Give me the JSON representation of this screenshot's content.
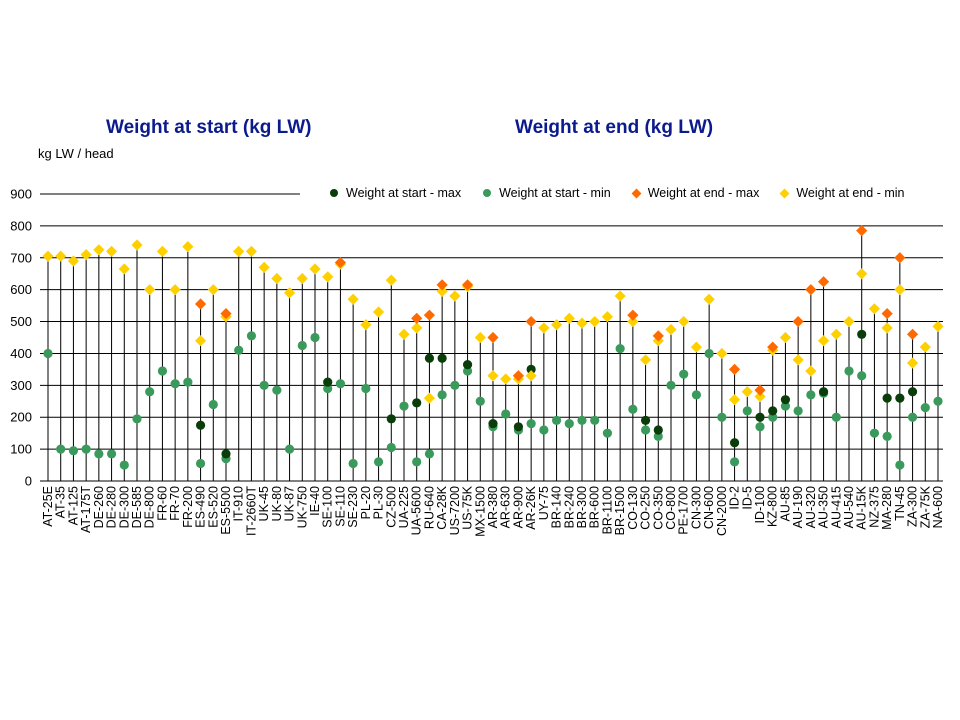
{
  "titles": {
    "left": "Weight at start (kg LW)",
    "right": "Weight at end (kg LW)",
    "unit": "kg LW / head"
  },
  "legend": [
    {
      "label": "Weight at start - max",
      "color": "#0a3d0a",
      "shape": "circle"
    },
    {
      "label": "Weight at start - min",
      "color": "#3a9a5c",
      "shape": "circle"
    },
    {
      "label": "Weight at end - max",
      "color": "#ff6a00",
      "shape": "diamond"
    },
    {
      "label": "Weight at end - min",
      "color": "#ffd000",
      "shape": "diamond"
    }
  ],
  "chart_data": {
    "type": "scatter",
    "ylim": [
      0,
      900
    ],
    "yticks": [
      0,
      100,
      200,
      300,
      400,
      500,
      600,
      700,
      800,
      900
    ],
    "grid": "horizontal",
    "legend_position": "top",
    "series_names": [
      "Weight at start - max",
      "Weight at start - min",
      "Weight at end - max",
      "Weight at end - min"
    ],
    "categories": [
      {
        "label": "AT-25E",
        "smax": null,
        "smin": 400,
        "emax": null,
        "emin": 705
      },
      {
        "label": "AT-35",
        "smax": null,
        "smin": 100,
        "emax": null,
        "emin": 705
      },
      {
        "label": "AT-125",
        "smax": null,
        "smin": 95,
        "emax": null,
        "emin": 690
      },
      {
        "label": "AT-175T",
        "smax": null,
        "smin": 100,
        "emax": null,
        "emin": 710
      },
      {
        "label": "DE-260",
        "smax": null,
        "smin": 85,
        "emax": null,
        "emin": 725
      },
      {
        "label": "DE-280",
        "smax": null,
        "smin": 85,
        "emax": null,
        "emin": 720
      },
      {
        "label": "DE-300",
        "smax": null,
        "smin": 50,
        "emax": null,
        "emin": 665
      },
      {
        "label": "DE-585",
        "smax": null,
        "smin": 195,
        "emax": null,
        "emin": 740
      },
      {
        "label": "DE-800",
        "smax": null,
        "smin": 280,
        "emax": null,
        "emin": 600
      },
      {
        "label": "FR-60",
        "smax": null,
        "smin": 345,
        "emax": null,
        "emin": 720
      },
      {
        "label": "FR-70",
        "smax": null,
        "smin": 305,
        "emax": null,
        "emin": 600
      },
      {
        "label": "FR-200",
        "smax": null,
        "smin": 310,
        "emax": null,
        "emin": 735
      },
      {
        "label": "ES-490",
        "smax": 175,
        "smin": 55,
        "emax": 555,
        "emin": 440
      },
      {
        "label": "ES-520",
        "smax": null,
        "smin": 240,
        "emax": null,
        "emin": 600
      },
      {
        "label": "ES-5500",
        "smax": 85,
        "smin": 70,
        "emax": 525,
        "emin": 515
      },
      {
        "label": "IT-910",
        "smax": null,
        "smin": 410,
        "emax": null,
        "emin": 720
      },
      {
        "label": "IT-2660T",
        "smax": null,
        "smin": 455,
        "emax": null,
        "emin": 720
      },
      {
        "label": "UK-45",
        "smax": null,
        "smin": 300,
        "emax": null,
        "emin": 670
      },
      {
        "label": "UK-80",
        "smax": null,
        "smin": 285,
        "emax": null,
        "emin": 635
      },
      {
        "label": "UK-87",
        "smax": null,
        "smin": 100,
        "emax": null,
        "emin": 590
      },
      {
        "label": "UK-750",
        "smax": null,
        "smin": 425,
        "emax": null,
        "emin": 635
      },
      {
        "label": "IE-40",
        "smax": null,
        "smin": 450,
        "emax": null,
        "emin": 665
      },
      {
        "label": "SE-100",
        "smax": 310,
        "smin": 290,
        "emax": null,
        "emin": 640
      },
      {
        "label": "SE-110",
        "smax": null,
        "smin": 305,
        "emax": 685,
        "emin": 680
      },
      {
        "label": "SE-230",
        "smax": null,
        "smin": 55,
        "emax": null,
        "emin": 570
      },
      {
        "label": "PL-20",
        "smax": null,
        "smin": 290,
        "emax": null,
        "emin": 490
      },
      {
        "label": "PL-30",
        "smax": null,
        "smin": 60,
        "emax": null,
        "emin": 530
      },
      {
        "label": "CZ-500",
        "smax": 195,
        "smin": 105,
        "emax": null,
        "emin": 630
      },
      {
        "label": "UA-225",
        "smax": null,
        "smin": 235,
        "emax": null,
        "emin": 460
      },
      {
        "label": "UA-5600",
        "smax": 245,
        "smin": 60,
        "emax": 510,
        "emin": 480
      },
      {
        "label": "RU-640",
        "smax": 385,
        "smin": 85,
        "emax": 520,
        "emin": 260
      },
      {
        "label": "CA-28K",
        "smax": 385,
        "smin": 270,
        "emax": 615,
        "emin": 595
      },
      {
        "label": "US-7200",
        "smax": null,
        "smin": 300,
        "emax": null,
        "emin": 580
      },
      {
        "label": "US-75K",
        "smax": 365,
        "smin": 345,
        "emax": 615,
        "emin": 610
      },
      {
        "label": "MX-1500",
        "smax": null,
        "smin": 250,
        "emax": null,
        "emin": 450
      },
      {
        "label": "AR-380",
        "smax": 180,
        "smin": 170,
        "emax": 450,
        "emin": 330
      },
      {
        "label": "AR-630",
        "smax": null,
        "smin": 210,
        "emax": null,
        "emin": 320
      },
      {
        "label": "AR-900",
        "smax": 170,
        "smin": 160,
        "emax": 330,
        "emin": 320
      },
      {
        "label": "AR-26K",
        "smax": 350,
        "smin": 180,
        "emax": 500,
        "emin": 330
      },
      {
        "label": "UY-75",
        "smax": null,
        "smin": 160,
        "emax": null,
        "emin": 480
      },
      {
        "label": "BR-140",
        "smax": null,
        "smin": 190,
        "emax": null,
        "emin": 490
      },
      {
        "label": "BR-240",
        "smax": null,
        "smin": 180,
        "emax": null,
        "emin": 510
      },
      {
        "label": "BR-300",
        "smax": null,
        "smin": 190,
        "emax": null,
        "emin": 495
      },
      {
        "label": "BR-600",
        "smax": null,
        "smin": 190,
        "emax": null,
        "emin": 500
      },
      {
        "label": "BR-1100",
        "smax": null,
        "smin": 150,
        "emax": null,
        "emin": 515
      },
      {
        "label": "BR-1500",
        "smax": null,
        "smin": 415,
        "emax": null,
        "emin": 580
      },
      {
        "label": "CO-130",
        "smax": null,
        "smin": 225,
        "emax": 520,
        "emin": 500
      },
      {
        "label": "CO-250",
        "smax": 190,
        "smin": 160,
        "emax": null,
        "emin": 380
      },
      {
        "label": "CO-350",
        "smax": 160,
        "smin": 140,
        "emax": 455,
        "emin": 440
      },
      {
        "label": "CO-800",
        "smax": null,
        "smin": 300,
        "emax": null,
        "emin": 475
      },
      {
        "label": "PE-1700",
        "smax": null,
        "smin": 335,
        "emax": null,
        "emin": 500
      },
      {
        "label": "CN-300",
        "smax": null,
        "smin": 270,
        "emax": null,
        "emin": 420
      },
      {
        "label": "CN-600",
        "smax": null,
        "smin": 400,
        "emax": null,
        "emin": 570
      },
      {
        "label": "CN-2000",
        "smax": null,
        "smin": 200,
        "emax": null,
        "emin": 400
      },
      {
        "label": "ID-2",
        "smax": 120,
        "smin": 60,
        "emax": 350,
        "emin": 255
      },
      {
        "label": "ID-5",
        "smax": null,
        "smin": 220,
        "emax": null,
        "emin": 280
      },
      {
        "label": "ID-100",
        "smax": 200,
        "smin": 170,
        "emax": 285,
        "emin": 265
      },
      {
        "label": "KZ-800",
        "smax": 220,
        "smin": 200,
        "emax": 420,
        "emin": 410
      },
      {
        "label": "AU-85",
        "smax": 255,
        "smin": 235,
        "emax": null,
        "emin": 450
      },
      {
        "label": "AU-190",
        "smax": null,
        "smin": 220,
        "emax": 500,
        "emin": 380
      },
      {
        "label": "AU-320",
        "smax": null,
        "smin": 270,
        "emax": 600,
        "emin": 345
      },
      {
        "label": "AU-350",
        "smax": 280,
        "smin": 275,
        "emax": 625,
        "emin": 440
      },
      {
        "label": "AU-415",
        "smax": null,
        "smin": 200,
        "emax": null,
        "emin": 460
      },
      {
        "label": "AU-540",
        "smax": null,
        "smin": 345,
        "emax": null,
        "emin": 500
      },
      {
        "label": "AU-15K",
        "smax": 460,
        "smin": 330,
        "emax": 785,
        "emin": 650
      },
      {
        "label": "NZ-375",
        "smax": null,
        "smin": 150,
        "emax": null,
        "emin": 540
      },
      {
        "label": "MA-280",
        "smax": 260,
        "smin": 140,
        "emax": 525,
        "emin": 480
      },
      {
        "label": "TN-45",
        "smax": 260,
        "smin": 50,
        "emax": 700,
        "emin": 600
      },
      {
        "label": "ZA-300",
        "smax": 280,
        "smin": 200,
        "emax": 460,
        "emin": 370
      },
      {
        "label": "ZA-75K",
        "smax": null,
        "smin": 230,
        "emax": null,
        "emin": 420
      },
      {
        "label": "NA-600",
        "smax": null,
        "smin": 250,
        "emax": null,
        "emin": 485
      }
    ]
  }
}
